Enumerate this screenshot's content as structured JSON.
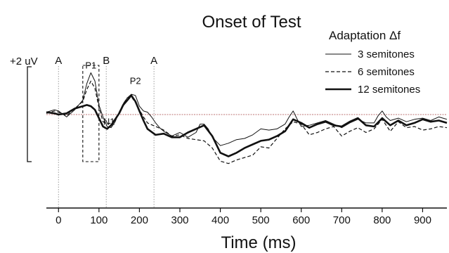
{
  "chart_data": {
    "type": "line",
    "title": "Onset of Test",
    "xlabel": "Time (ms)",
    "ylabel": "",
    "xlim": [
      -30,
      960
    ],
    "ylim": [
      -2.6,
      2.6
    ],
    "grid": false,
    "legend": {
      "title": "Adaptation Δf",
      "placement": "top-right"
    },
    "scale_label": "+2 uV",
    "x_ticks": [
      0,
      100,
      200,
      300,
      400,
      500,
      600,
      700,
      800,
      900
    ],
    "x_tick_labels": [
      "0",
      "100",
      "200",
      "300",
      "400",
      "500",
      "600",
      "700",
      "800",
      "900"
    ],
    "markers": [
      {
        "label": "A",
        "x": 0
      },
      {
        "label": "B",
        "x": 118
      },
      {
        "label": "A",
        "x": 236
      }
    ],
    "annotations": [
      {
        "label": "P1",
        "x": 80,
        "y": 1.75
      },
      {
        "label": "P2",
        "x": 190,
        "y": 1.1
      },
      {
        "label": "N1",
        "x": 125,
        "y": -0.6
      }
    ],
    "p1_window": [
      60,
      100
    ],
    "colors": {
      "line": "#111111",
      "baseline": "#c98f8f",
      "marker_line": "#9a9a9a"
    },
    "series": [
      {
        "name": "3 semitones",
        "style": "thin",
        "x": [
          -30,
          -10,
          0,
          20,
          40,
          60,
          70,
          80,
          90,
          100,
          110,
          120,
          130,
          140,
          150,
          160,
          170,
          180,
          190,
          200,
          210,
          220,
          230,
          240,
          250,
          260,
          280,
          300,
          320,
          340,
          350,
          360,
          370,
          380,
          400,
          420,
          440,
          460,
          480,
          500,
          520,
          540,
          560,
          570,
          580,
          590,
          600,
          620,
          640,
          660,
          680,
          700,
          720,
          740,
          760,
          780,
          790,
          800,
          810,
          820,
          840,
          860,
          880,
          900,
          920,
          940,
          960
        ],
        "values": [
          0.1,
          0.2,
          0.15,
          -0.1,
          0.2,
          0.6,
          1.3,
          1.75,
          1.4,
          0.4,
          -0.1,
          -0.5,
          -0.55,
          -0.3,
          0.1,
          0.45,
          0.7,
          0.85,
          0.8,
          0.35,
          0.15,
          0.1,
          -0.1,
          -0.35,
          -0.55,
          -0.7,
          -0.9,
          -0.75,
          -0.95,
          -0.75,
          -0.4,
          -0.4,
          -0.6,
          -0.95,
          -1.3,
          -1.2,
          -1.05,
          -1.0,
          -0.85,
          -0.6,
          -0.65,
          -0.6,
          -0.4,
          -0.1,
          0.15,
          -0.2,
          -0.5,
          -0.45,
          -0.35,
          -0.25,
          -0.4,
          -0.55,
          -0.35,
          -0.2,
          -0.35,
          -0.35,
          -0.05,
          0.15,
          -0.1,
          -0.25,
          -0.15,
          -0.3,
          -0.2,
          -0.15,
          -0.25,
          -0.1,
          -0.2
        ]
      },
      {
        "name": "6 semitones",
        "style": "dashed",
        "x": [
          -30,
          -10,
          0,
          20,
          40,
          60,
          70,
          80,
          90,
          100,
          110,
          120,
          130,
          140,
          150,
          160,
          170,
          180,
          190,
          200,
          210,
          220,
          240,
          260,
          280,
          300,
          320,
          340,
          360,
          380,
          400,
          420,
          440,
          460,
          480,
          500,
          520,
          540,
          560,
          580,
          600,
          620,
          640,
          660,
          680,
          700,
          720,
          740,
          760,
          780,
          800,
          820,
          840,
          860,
          880,
          900,
          920,
          940,
          960
        ],
        "values": [
          0.05,
          0.15,
          0.1,
          -0.05,
          0.25,
          0.55,
          1.05,
          1.4,
          1.1,
          0.3,
          -0.3,
          -0.4,
          -0.35,
          -0.2,
          0.1,
          0.45,
          0.7,
          0.75,
          0.5,
          0.2,
          -0.1,
          -0.35,
          -0.5,
          -0.65,
          -0.9,
          -0.85,
          -1.0,
          -1.05,
          -1.1,
          -1.4,
          -1.95,
          -2.05,
          -1.9,
          -1.8,
          -1.7,
          -1.35,
          -1.4,
          -1.0,
          -0.6,
          -0.3,
          -0.4,
          -0.85,
          -0.75,
          -0.6,
          -0.5,
          -0.9,
          -0.7,
          -0.55,
          -0.75,
          -0.6,
          -0.2,
          -0.7,
          -0.3,
          -0.55,
          -0.5,
          -0.65,
          -0.6,
          -0.5,
          -0.55
        ]
      },
      {
        "name": "12 semitones",
        "style": "thick",
        "x": [
          -30,
          -10,
          0,
          20,
          40,
          60,
          70,
          80,
          90,
          100,
          110,
          120,
          130,
          140,
          150,
          160,
          170,
          180,
          190,
          200,
          210,
          220,
          240,
          260,
          280,
          300,
          320,
          340,
          360,
          380,
          400,
          420,
          440,
          460,
          480,
          500,
          520,
          540,
          560,
          580,
          600,
          620,
          640,
          660,
          680,
          700,
          720,
          740,
          760,
          780,
          800,
          820,
          840,
          860,
          880,
          900,
          920,
          940,
          960
        ],
        "values": [
          0.1,
          0.05,
          0.0,
          0.05,
          0.25,
          0.35,
          0.4,
          0.35,
          0.2,
          -0.15,
          -0.5,
          -0.6,
          -0.45,
          -0.2,
          0.05,
          0.4,
          0.6,
          0.8,
          0.55,
          0.15,
          -0.25,
          -0.6,
          -0.85,
          -0.8,
          -0.95,
          -0.95,
          -0.75,
          -0.6,
          -0.45,
          -0.9,
          -1.6,
          -1.75,
          -1.6,
          -1.4,
          -1.25,
          -1.1,
          -1.05,
          -0.9,
          -0.7,
          -0.2,
          -0.35,
          -0.55,
          -0.4,
          -0.3,
          -0.45,
          -0.5,
          -0.3,
          -0.15,
          -0.45,
          -0.5,
          -0.15,
          -0.45,
          -0.25,
          -0.45,
          -0.35,
          -0.2,
          -0.3,
          -0.25,
          -0.35
        ]
      }
    ]
  }
}
